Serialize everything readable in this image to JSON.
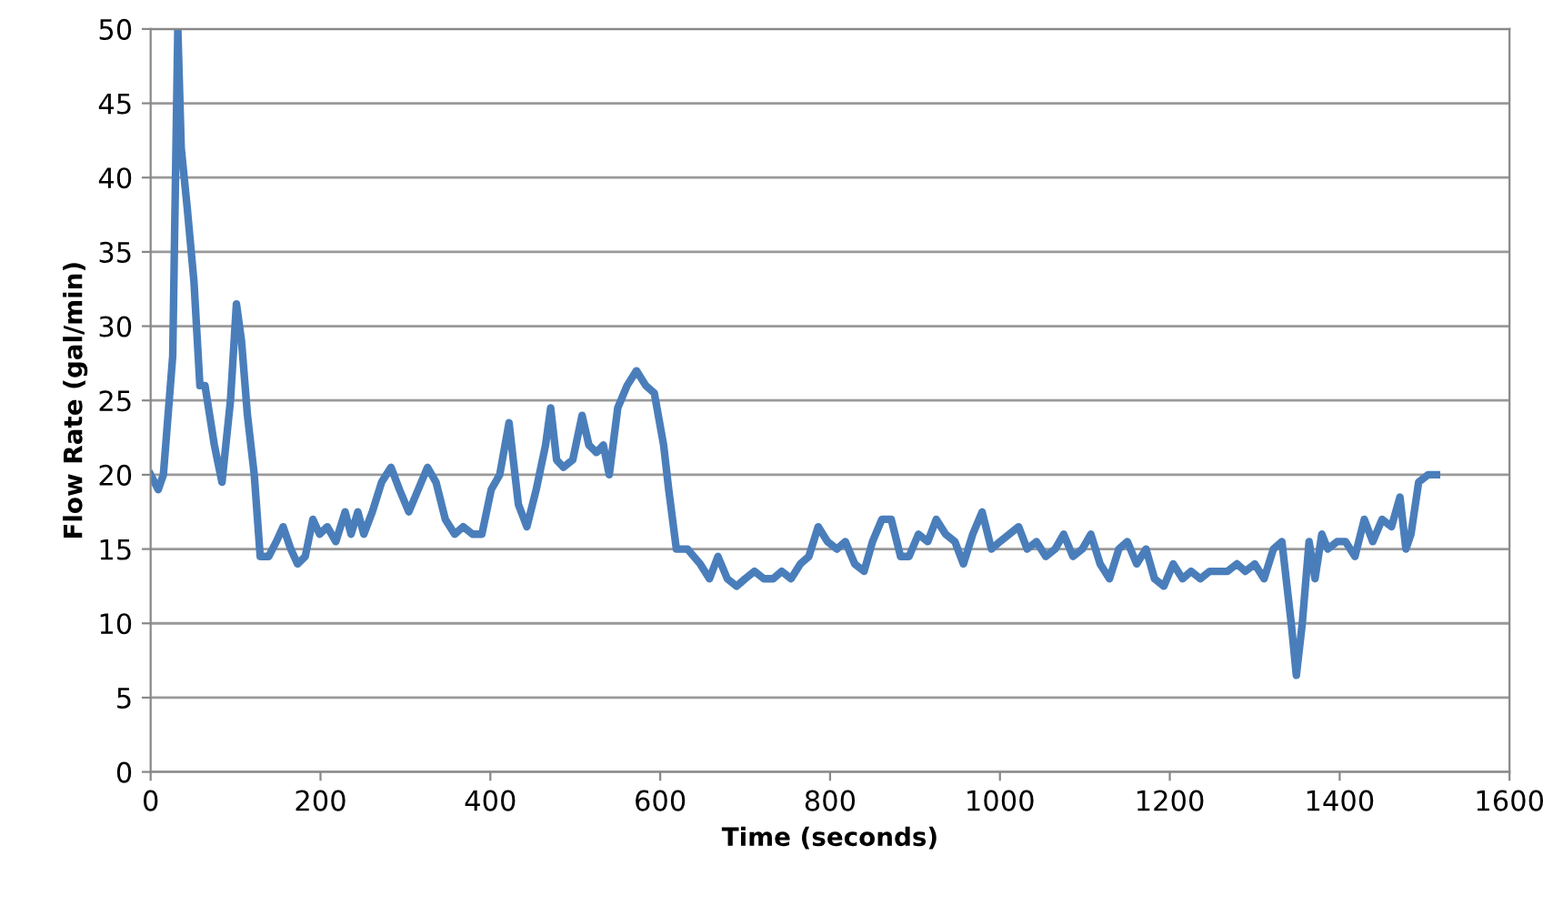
{
  "chart_data": {
    "type": "line",
    "xlabel": "Time (seconds)",
    "ylabel": "Flow Rate (gal/min)",
    "xlim": [
      0,
      1600
    ],
    "xticks": [
      0,
      200,
      400,
      600,
      800,
      1000,
      1200,
      1400,
      1600
    ],
    "ylim": [
      0,
      50
    ],
    "yticks": [
      0,
      5,
      10,
      15,
      20,
      25,
      30,
      35,
      40,
      45,
      50
    ],
    "grid": "y",
    "line_style": "solid",
    "series": [
      {
        "color": "#4a7ebb",
        "x": [
          0,
          9,
          15,
          26,
          32,
          36,
          43,
          51,
          58,
          64,
          75,
          84,
          94,
          101,
          107,
          114,
          122,
          129,
          139,
          148,
          156,
          165,
          173,
          182,
          191,
          199,
          208,
          218,
          229,
          236,
          244,
          251,
          261,
          272,
          283,
          293,
          304,
          315,
          326,
          336,
          347,
          358,
          368,
          379,
          390,
          401,
          411,
          422,
          433,
          443,
          454,
          465,
          471,
          478,
          486,
          497,
          508,
          516,
          525,
          533,
          540,
          550,
          561,
          572,
          583,
          593,
          604,
          610,
          619,
          632,
          647,
          658,
          668,
          679,
          690,
          700,
          711,
          722,
          733,
          743,
          754,
          765,
          775,
          786,
          797,
          808,
          818,
          829,
          840,
          850,
          861,
          872,
          883,
          893,
          904,
          915,
          925,
          936,
          947,
          957,
          968,
          979,
          990,
          1000,
          1011,
          1022,
          1032,
          1043,
          1054,
          1065,
          1075,
          1086,
          1097,
          1107,
          1118,
          1129,
          1140,
          1150,
          1161,
          1172,
          1182,
          1193,
          1204,
          1215,
          1225,
          1236,
          1247,
          1257,
          1268,
          1279,
          1289,
          1300,
          1311,
          1322,
          1332,
          1343,
          1349,
          1356,
          1364,
          1371,
          1379,
          1386,
          1397,
          1407,
          1418,
          1429,
          1439,
          1450,
          1461,
          1471,
          1478,
          1484,
          1493,
          1504,
          1514
        ],
        "values": [
          20,
          19,
          20,
          28,
          50,
          42,
          38,
          33,
          26,
          26,
          22,
          19.5,
          25,
          31.5,
          29,
          24,
          20,
          14.5,
          14.5,
          15.5,
          16.5,
          15,
          14,
          14.5,
          17,
          16,
          16.5,
          15.5,
          17.5,
          16,
          17.5,
          16,
          17.5,
          19.5,
          20.5,
          19,
          17.5,
          19,
          20.5,
          19.5,
          17,
          16,
          16.5,
          16,
          16,
          19,
          20,
          23.5,
          18,
          16.5,
          19,
          22,
          24.5,
          21,
          20.5,
          21,
          24,
          22,
          21.5,
          22,
          20,
          24.5,
          26,
          27,
          26,
          25.5,
          22,
          19,
          15,
          15,
          14,
          13,
          14.5,
          13,
          12.5,
          13,
          13.5,
          13,
          13,
          13.5,
          13,
          14,
          14.5,
          16.5,
          15.5,
          15,
          15.5,
          14,
          13.5,
          15.5,
          17,
          17,
          14.5,
          14.5,
          16,
          15.5,
          17,
          16,
          15.5,
          14,
          16,
          17.5,
          15,
          15.5,
          16,
          16.5,
          15,
          15.5,
          14.5,
          15,
          16,
          14.5,
          15,
          16,
          14,
          13,
          15,
          15.5,
          14,
          15,
          13,
          12.5,
          14,
          13,
          13.5,
          13,
          13.5,
          13.5,
          13.5,
          14,
          13.5,
          14,
          13,
          15,
          15.5,
          10,
          6.5,
          10,
          15.5,
          13,
          16,
          15,
          15.5,
          15.5,
          14.5,
          17,
          15.5,
          17,
          16.5,
          18.5,
          15,
          16,
          19.5,
          20,
          20
        ]
      }
    ]
  }
}
